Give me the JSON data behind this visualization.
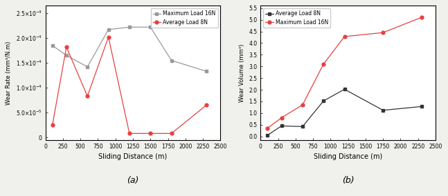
{
  "chart_a": {
    "x": [
      100,
      300,
      600,
      900,
      1200,
      1500,
      1800,
      2300
    ],
    "y_16N": [
      0.000185,
      0.000165,
      0.000142,
      0.000217,
      0.000222,
      0.000222,
      0.000155,
      0.000133
    ],
    "y_8N": [
      2.5e-05,
      0.000182,
      8.3e-05,
      0.000202,
      8e-06,
      8e-06,
      8e-06,
      6.5e-05
    ],
    "color_16N": "#999999",
    "color_8N": "#e84040",
    "marker_16N": "s",
    "marker_8N": "o",
    "label_16N": "Maximum Load 16N",
    "label_8N": "Average Load 8N",
    "xlabel": "Sliding Distance (m)",
    "ylabel": "Wear Rate (mm³/N.m)",
    "ylim": [
      -5e-06,
      0.000265
    ],
    "xlim": [
      0,
      2500
    ],
    "yticks": [
      0,
      5e-05,
      0.0001,
      0.00015,
      0.0002,
      0.00025
    ],
    "ytick_labels": [
      "0",
      "5.0×10⁻⁵",
      "1.0×10⁻⁴",
      "1.5×10⁻⁴",
      "2.0×10⁻⁴",
      "2.5×10⁻⁴"
    ],
    "xticks": [
      0,
      250,
      500,
      750,
      1000,
      1250,
      1500,
      1750,
      2000,
      2250,
      2500
    ],
    "sublabel": "(a)"
  },
  "chart_b": {
    "x": [
      100,
      300,
      600,
      900,
      1200,
      1750,
      2300
    ],
    "y_16N": [
      0.35,
      0.8,
      1.35,
      3.1,
      4.28,
      4.45,
      5.1
    ],
    "y_8N": [
      0.05,
      0.45,
      0.42,
      1.52,
      2.02,
      1.12,
      1.28
    ],
    "color_16N": "#e84040",
    "color_8N": "#333333",
    "marker_16N": "o",
    "marker_8N": "s",
    "label_8N": "Average Load 8N",
    "label_16N": "Maximum Load 16N",
    "xlabel": "Sliding Distance (m)",
    "ylabel": "Wear Volume (mm³)",
    "ylim": [
      -0.15,
      5.6
    ],
    "xlim": [
      0,
      2500
    ],
    "yticks": [
      0.0,
      0.5,
      1.0,
      1.5,
      2.0,
      2.5,
      3.0,
      3.5,
      4.0,
      4.5,
      5.0,
      5.5
    ],
    "xticks": [
      0,
      250,
      500,
      750,
      1000,
      1250,
      1500,
      1750,
      2000,
      2250,
      2500
    ],
    "sublabel": "(b)"
  },
  "background_color": "#ffffff",
  "fig_facecolor": "#f0f0ec"
}
